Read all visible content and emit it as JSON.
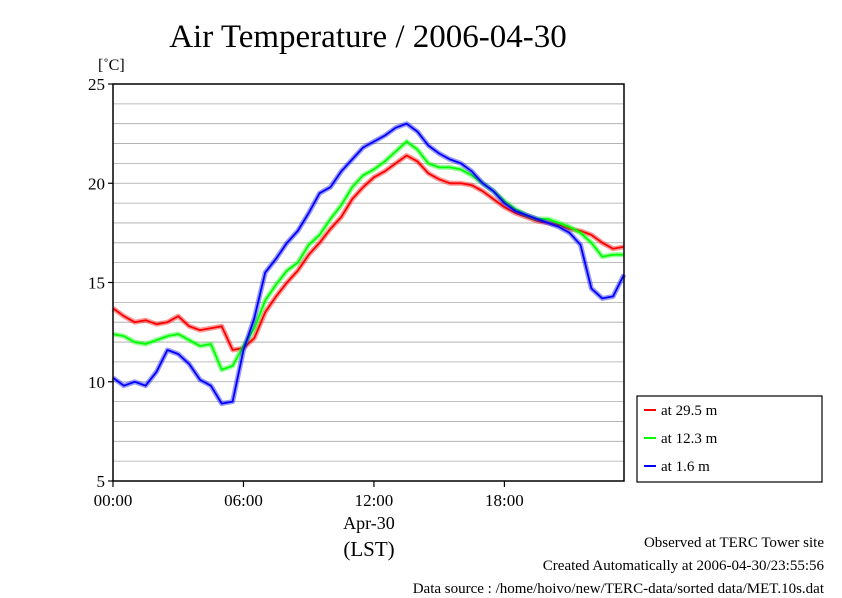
{
  "chart_data": {
    "type": "line",
    "title": "Air Temperature / 2006-04-30",
    "ylabel": "[˚C]",
    "xlabel_date": "Apr-30",
    "xlabel_tz": "(LST)",
    "x_ticks": [
      "00:00",
      "06:00",
      "12:00",
      "18:00"
    ],
    "x_tick_hours": [
      0,
      6,
      12,
      18
    ],
    "xlim_hours": [
      0,
      23.5
    ],
    "ylim": [
      5,
      25
    ],
    "y_ticks": [
      5,
      10,
      15,
      20,
      25
    ],
    "grid": true,
    "legend_position": "right",
    "x_hours": [
      0,
      0.5,
      1,
      1.5,
      2,
      2.5,
      3,
      3.5,
      4,
      4.5,
      5,
      5.5,
      6,
      6.5,
      7,
      7.5,
      8,
      8.5,
      9,
      9.5,
      10,
      10.5,
      11,
      11.5,
      12,
      12.5,
      13,
      13.5,
      14,
      14.5,
      15,
      15.5,
      16,
      16.5,
      17,
      17.5,
      18,
      18.5,
      19,
      19.5,
      20,
      20.5,
      21,
      21.5,
      22,
      22.5,
      23,
      23.5
    ],
    "series": [
      {
        "name": "at 29.5 m",
        "color": "#ff0000",
        "values": [
          13.7,
          13.3,
          13.0,
          13.1,
          12.9,
          13.0,
          13.3,
          12.8,
          12.6,
          12.7,
          12.8,
          11.6,
          11.7,
          12.2,
          13.5,
          14.3,
          15.0,
          15.6,
          16.4,
          17.0,
          17.7,
          18.3,
          19.2,
          19.8,
          20.3,
          20.6,
          21.0,
          21.4,
          21.1,
          20.5,
          20.2,
          20.0,
          20.0,
          19.9,
          19.6,
          19.2,
          18.8,
          18.5,
          18.3,
          18.1,
          18.0,
          17.9,
          17.7,
          17.6,
          17.4,
          17.0,
          16.7,
          16.8
        ]
      },
      {
        "name": "at 12.3 m",
        "color": "#00ff00",
        "values": [
          12.4,
          12.3,
          12.0,
          11.9,
          12.1,
          12.3,
          12.4,
          12.1,
          11.8,
          11.9,
          10.6,
          10.8,
          11.8,
          12.7,
          14.1,
          14.9,
          15.6,
          16.0,
          16.9,
          17.4,
          18.2,
          18.9,
          19.8,
          20.4,
          20.7,
          21.1,
          21.6,
          22.1,
          21.7,
          21.0,
          20.8,
          20.8,
          20.7,
          20.4,
          20.0,
          19.6,
          19.1,
          18.7,
          18.4,
          18.2,
          18.2,
          18.0,
          17.8,
          17.5,
          17.0,
          16.3,
          16.4,
          16.4
        ]
      },
      {
        "name": "at 1.6 m",
        "color": "#0000ff",
        "values": [
          10.2,
          9.8,
          10.0,
          9.8,
          10.5,
          11.6,
          11.4,
          10.9,
          10.1,
          9.8,
          8.9,
          9.0,
          11.6,
          13.2,
          15.5,
          16.2,
          17.0,
          17.6,
          18.5,
          19.5,
          19.8,
          20.6,
          21.2,
          21.8,
          22.1,
          22.4,
          22.8,
          23.0,
          22.6,
          21.9,
          21.5,
          21.2,
          21.0,
          20.6,
          20.0,
          19.6,
          19.0,
          18.6,
          18.4,
          18.2,
          18.0,
          17.8,
          17.5,
          16.9,
          14.7,
          14.2,
          14.3,
          15.4
        ]
      }
    ]
  },
  "footer": {
    "line1": "Observed at TERC Tower site",
    "line2": "Created Automatically at 2006-04-30/23:55:56",
    "line3": "Data source : /home/hoivo/new/TERC-data/sorted  data/MET.10s.dat"
  }
}
